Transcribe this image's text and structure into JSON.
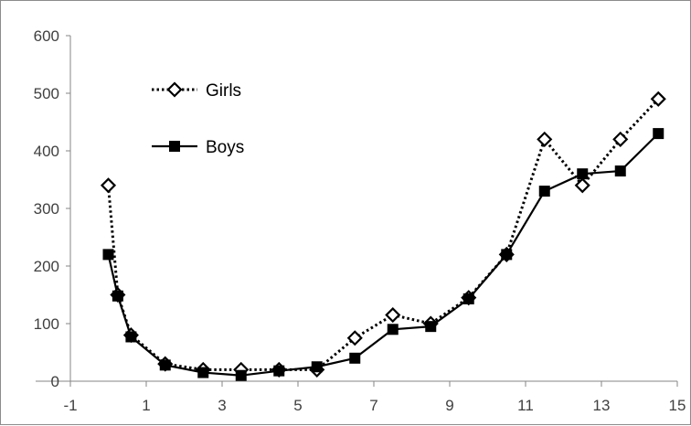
{
  "chart_data": {
    "type": "line",
    "xlim": [
      -1,
      15
    ],
    "ylim": [
      0,
      600
    ],
    "x_ticks": [
      -1,
      1,
      3,
      5,
      7,
      9,
      11,
      13,
      15
    ],
    "y_ticks": [
      0,
      100,
      200,
      300,
      400,
      500,
      600
    ],
    "grid": false,
    "legend_position": "top-left",
    "series": [
      {
        "name": "Girls",
        "color": "#000000",
        "line_style": "dotted",
        "marker": "open-diamond",
        "x": [
          0,
          0.25,
          0.6,
          1.5,
          2.5,
          3.5,
          4.5,
          5.5,
          6.5,
          7.5,
          8.5,
          9.5,
          10.5,
          11.5,
          12.5,
          13.5,
          14.5
        ],
        "y": [
          340,
          150,
          80,
          30,
          20,
          20,
          20,
          20,
          75,
          115,
          100,
          145,
          220,
          420,
          340,
          420,
          490
        ]
      },
      {
        "name": "Boys",
        "color": "#000000",
        "line_style": "solid",
        "marker": "filled-square",
        "x": [
          0,
          0.25,
          0.6,
          1.5,
          2.5,
          3.5,
          4.5,
          5.5,
          6.5,
          7.5,
          8.5,
          9.5,
          10.5,
          11.5,
          12.5,
          13.5,
          14.5
        ],
        "y": [
          220,
          148,
          77,
          28,
          15,
          10,
          18,
          25,
          40,
          90,
          95,
          143,
          220,
          330,
          360,
          365,
          430
        ]
      }
    ]
  }
}
